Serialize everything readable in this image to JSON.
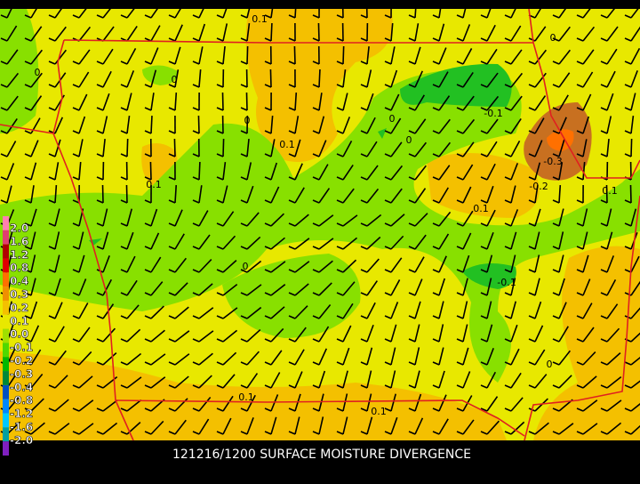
{
  "caption": "121216/1200 SURFACE MOISTURE DIVERGENCE",
  "legend": {
    "labels": [
      "2.0",
      "1.6",
      "1.2",
      "0.8",
      "0.4",
      "0.3",
      "0.2",
      "0.1",
      "0.0",
      "-0.1",
      "-0.2",
      "-0.3",
      "-0.4",
      "-0.8",
      "-1.2",
      "-1.6",
      "-2.0"
    ],
    "colors": [
      "#ff80b0",
      "#e04070",
      "#b00000",
      "#e00000",
      "#ff7000",
      "#f09000",
      "#f4c000",
      "#e8e800",
      "#a0e000",
      "#50d800",
      "#00b800",
      "#008838",
      "#0050c0",
      "#0088ff",
      "#00c8ff",
      "#00a0a0",
      "#8020c0"
    ]
  },
  "contour_labels": [
    "0.1",
    "0",
    "0",
    "0",
    "0",
    "0.1",
    "0",
    "0",
    "-0.1",
    "-0.3",
    "-0.2",
    "0.1",
    "0.1",
    "0.1",
    "0",
    "-0.1",
    "0",
    "0.1",
    "0.1"
  ]
}
